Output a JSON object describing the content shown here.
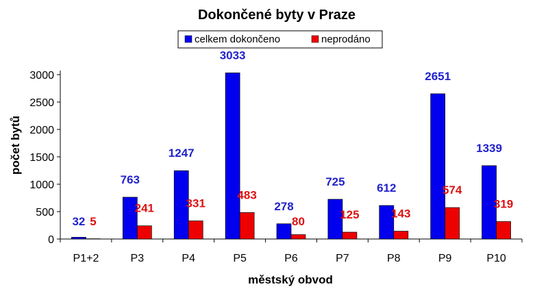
{
  "chart_data": {
    "type": "bar",
    "title": "Dokončené byty v Praze",
    "xlabel": "městský obvod",
    "ylabel": "počet bytů",
    "categories": [
      "P1+2",
      "P3",
      "P4",
      "P5",
      "P6",
      "P7",
      "P8",
      "P9",
      "P10"
    ],
    "series": [
      {
        "name": "celkem dokončeno",
        "color": "#0000ee",
        "label_color": "#2222cc",
        "values": [
          32,
          763,
          1247,
          3033,
          278,
          725,
          612,
          2651,
          1339
        ]
      },
      {
        "name": "neprodáno",
        "color": "#ee0000",
        "label_color": "#dd1111",
        "values": [
          5,
          241,
          331,
          483,
          80,
          125,
          143,
          574,
          319
        ]
      }
    ],
    "ylim": [
      0,
      3000
    ],
    "yticks": [
      0,
      500,
      1000,
      1500,
      2000,
      2500,
      3000
    ],
    "legend_position": "top-center",
    "grid": false
  }
}
